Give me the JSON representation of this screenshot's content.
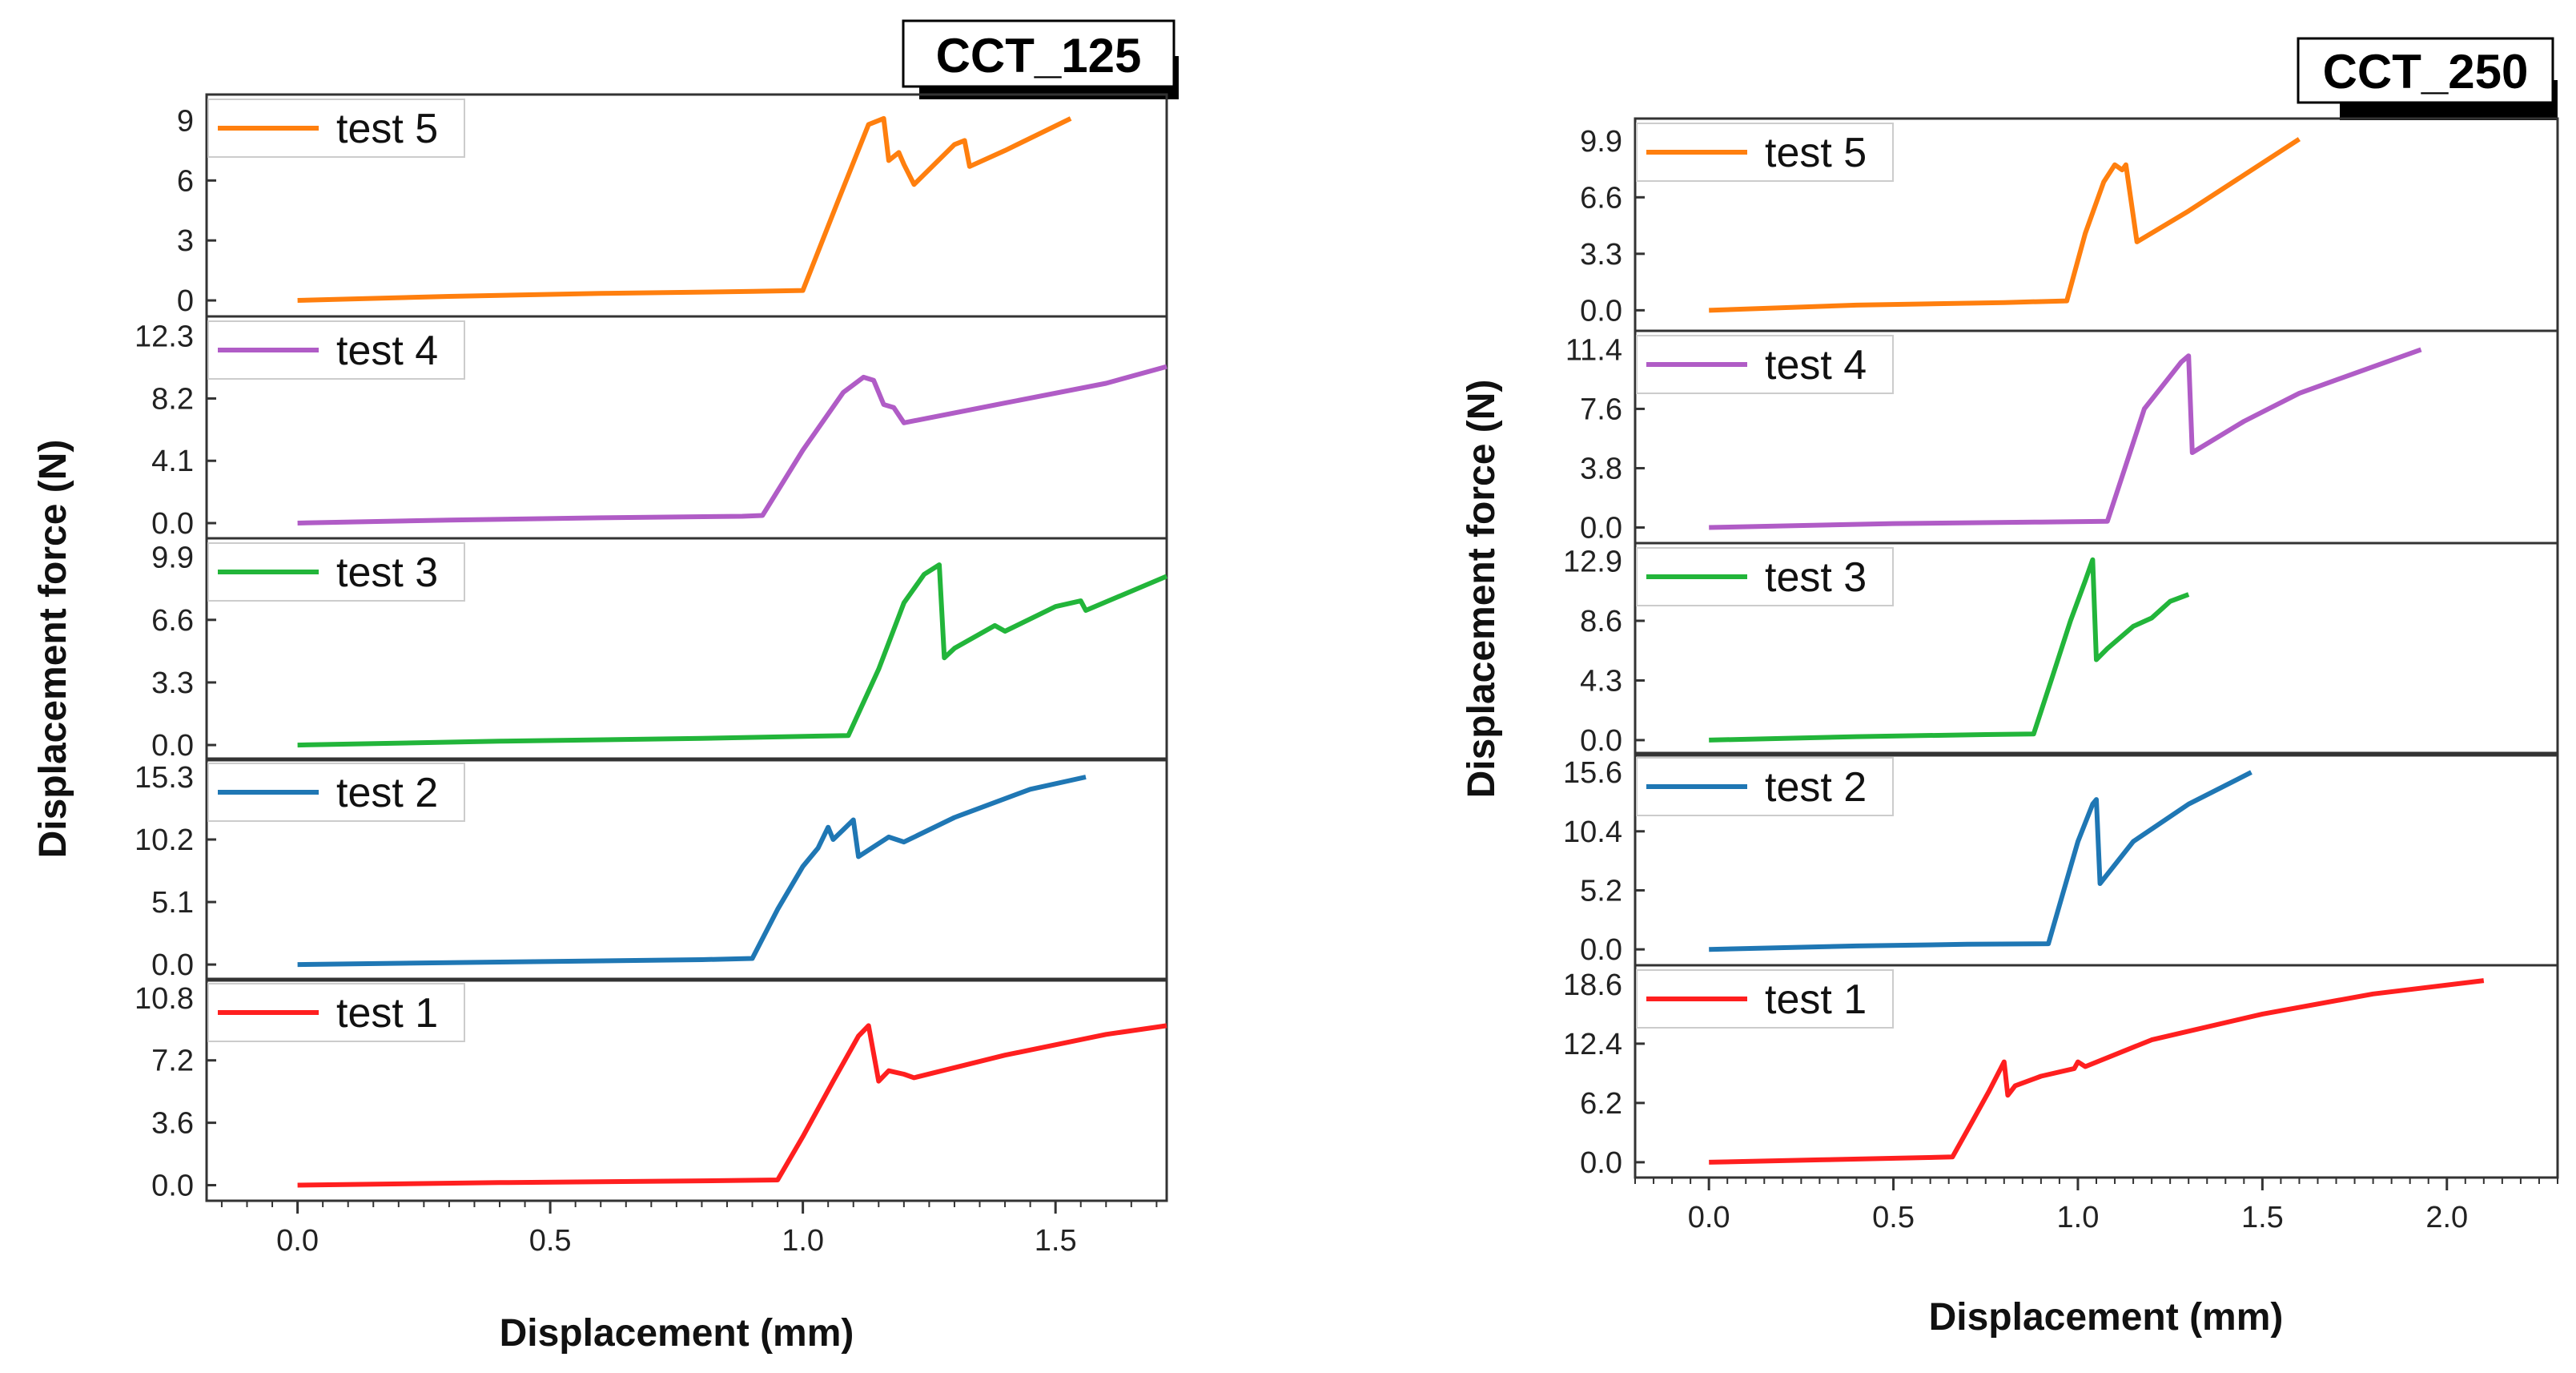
{
  "chart_data": [
    {
      "type": "line",
      "title": "CCT_125",
      "xlabel": "Displacement (mm)",
      "ylabel": "Displacement force (N)",
      "xlim": [
        -0.18,
        1.72
      ],
      "xticks": [
        0.0,
        0.5,
        1.0,
        1.5
      ],
      "xtick_labels": [
        "0.0",
        "0.5",
        "1.0",
        "1.5"
      ],
      "panels": [
        {
          "name": "test 5",
          "color": "#FF7F0E",
          "ylim": [
            -0.8,
            10.3
          ],
          "yticks": [
            0,
            3,
            6,
            9
          ],
          "ytick_labels": [
            "0",
            "3",
            "6",
            "9"
          ],
          "x": [
            0.0,
            0.3,
            0.6,
            0.9,
            1.0,
            1.07,
            1.13,
            1.16,
            1.17,
            1.19,
            1.2,
            1.22,
            1.3,
            1.32,
            1.33,
            1.4,
            1.53
          ],
          "y": [
            0.0,
            0.2,
            0.35,
            0.45,
            0.5,
            5.0,
            8.8,
            9.1,
            7.0,
            7.4,
            6.8,
            5.8,
            7.8,
            8.0,
            6.7,
            7.5,
            9.1
          ]
        },
        {
          "name": "test 4",
          "color": "#B05CC6",
          "ylim": [
            -1.0,
            13.6
          ],
          "yticks": [
            0.0,
            4.1,
            8.2,
            12.3
          ],
          "ytick_labels": [
            "0.0",
            "4.1",
            "8.2",
            "12.3"
          ],
          "x": [
            0.0,
            0.3,
            0.6,
            0.88,
            0.92,
            1.0,
            1.08,
            1.12,
            1.14,
            1.16,
            1.18,
            1.2,
            1.4,
            1.6,
            1.72
          ],
          "y": [
            0.0,
            0.2,
            0.35,
            0.45,
            0.5,
            4.8,
            8.6,
            9.6,
            9.4,
            7.8,
            7.6,
            6.6,
            7.9,
            9.2,
            10.3
          ]
        },
        {
          "name": "test 3",
          "color": "#22B53A",
          "ylim": [
            -0.8,
            10.9
          ],
          "yticks": [
            0.0,
            3.3,
            6.6,
            9.9
          ],
          "ytick_labels": [
            "0.0",
            "3.3",
            "6.6",
            "9.9"
          ],
          "x": [
            0.0,
            0.4,
            0.8,
            1.09,
            1.15,
            1.2,
            1.24,
            1.27,
            1.28,
            1.3,
            1.38,
            1.4,
            1.5,
            1.55,
            1.56,
            1.72
          ],
          "y": [
            0.0,
            0.2,
            0.35,
            0.5,
            4.0,
            7.5,
            9.0,
            9.5,
            4.6,
            5.1,
            6.3,
            6.0,
            7.3,
            7.6,
            7.1,
            8.9
          ]
        },
        {
          "name": "test 2",
          "color": "#1F77B4",
          "ylim": [
            -1.3,
            16.8
          ],
          "yticks": [
            0.0,
            5.1,
            10.2,
            15.3
          ],
          "ytick_labels": [
            "0.0",
            "5.1",
            "10.2",
            "15.3"
          ],
          "x": [
            0.0,
            0.4,
            0.8,
            0.9,
            0.95,
            1.0,
            1.03,
            1.05,
            1.06,
            1.08,
            1.1,
            1.11,
            1.17,
            1.2,
            1.3,
            1.45,
            1.56
          ],
          "y": [
            0.0,
            0.2,
            0.4,
            0.5,
            4.5,
            8.0,
            9.5,
            11.2,
            10.2,
            11.0,
            11.8,
            8.8,
            10.4,
            10.0,
            12.0,
            14.3,
            15.3
          ]
        },
        {
          "name": "test 1",
          "color": "#FF1F1F",
          "ylim": [
            -0.9,
            11.9
          ],
          "yticks": [
            0.0,
            3.6,
            7.2,
            10.8
          ],
          "ytick_labels": [
            "0.0",
            "3.6",
            "7.2",
            "10.8"
          ],
          "x": [
            0.0,
            0.4,
            0.8,
            0.95,
            1.0,
            1.06,
            1.11,
            1.13,
            1.15,
            1.17,
            1.2,
            1.22,
            1.4,
            1.6,
            1.72
          ],
          "y": [
            0.0,
            0.15,
            0.25,
            0.3,
            2.8,
            6.0,
            8.6,
            9.2,
            6.0,
            6.6,
            6.4,
            6.2,
            7.5,
            8.7,
            9.2
          ]
        }
      ]
    },
    {
      "type": "line",
      "title": "CCT_250",
      "xlabel": "Displacement (mm)",
      "ylabel": "Displacement force (N)",
      "xlim": [
        -0.2,
        2.3
      ],
      "xticks": [
        0.0,
        0.5,
        1.0,
        1.5,
        2.0
      ],
      "xtick_labels": [
        "0.0",
        "0.5",
        "1.0",
        "1.5",
        "2.0"
      ],
      "panels": [
        {
          "name": "test 5",
          "color": "#FF7F0E",
          "ylim": [
            -1.2,
            11.2
          ],
          "yticks": [
            0.0,
            3.3,
            6.6,
            9.9
          ],
          "ytick_labels": [
            "0.0",
            "3.3",
            "6.6",
            "9.9"
          ],
          "x": [
            0.0,
            0.4,
            0.8,
            0.97,
            1.02,
            1.07,
            1.1,
            1.12,
            1.13,
            1.15,
            1.16,
            1.3,
            1.45,
            1.6
          ],
          "y": [
            0.0,
            0.3,
            0.45,
            0.55,
            4.5,
            7.5,
            8.5,
            8.2,
            8.5,
            5.5,
            4.0,
            5.8,
            7.9,
            10.0
          ]
        },
        {
          "name": "test 4",
          "color": "#B05CC6",
          "ylim": [
            -1.0,
            12.6
          ],
          "yticks": [
            0.0,
            3.8,
            7.6,
            11.4
          ],
          "ytick_labels": [
            "0.0",
            "3.8",
            "7.6",
            "11.4"
          ],
          "x": [
            0.0,
            0.5,
            0.9,
            1.08,
            1.13,
            1.18,
            1.24,
            1.28,
            1.3,
            1.31,
            1.45,
            1.6,
            1.8,
            1.93
          ],
          "y": [
            0.0,
            0.25,
            0.35,
            0.4,
            4.0,
            7.6,
            9.4,
            10.6,
            11.0,
            4.8,
            6.8,
            8.6,
            10.3,
            11.4
          ]
        },
        {
          "name": "test 3",
          "color": "#22B53A",
          "ylim": [
            -1.1,
            14.2
          ],
          "yticks": [
            0.0,
            4.3,
            8.6,
            12.9
          ],
          "ytick_labels": [
            "0.0",
            "4.3",
            "8.6",
            "12.9"
          ],
          "x": [
            0.0,
            0.4,
            0.75,
            0.88,
            0.93,
            0.98,
            1.02,
            1.04,
            1.05,
            1.08,
            1.15,
            1.2,
            1.25,
            1.3
          ],
          "y": [
            0.0,
            0.25,
            0.4,
            0.45,
            4.5,
            8.6,
            11.5,
            13.0,
            5.8,
            6.6,
            8.2,
            8.8,
            10.0,
            10.5
          ]
        },
        {
          "name": "test 2",
          "color": "#1F77B4",
          "ylim": [
            -1.4,
            17.3
          ],
          "yticks": [
            0.0,
            5.2,
            10.4,
            15.6
          ],
          "ytick_labels": [
            "0.0",
            "5.2",
            "10.4",
            "15.6"
          ],
          "x": [
            0.0,
            0.4,
            0.7,
            0.92,
            0.96,
            1.0,
            1.04,
            1.05,
            1.06,
            1.15,
            1.3,
            1.47
          ],
          "y": [
            0.0,
            0.3,
            0.45,
            0.5,
            5.0,
            9.5,
            12.8,
            13.2,
            5.8,
            9.5,
            12.8,
            15.6
          ]
        },
        {
          "name": "test 1",
          "color": "#FF1F1F",
          "ylim": [
            -1.6,
            20.6
          ],
          "yticks": [
            0.0,
            6.2,
            12.4,
            18.6
          ],
          "ytick_labels": [
            "0.0",
            "6.2",
            "12.4",
            "18.6"
          ],
          "x": [
            0.0,
            0.3,
            0.66,
            0.71,
            0.76,
            0.8,
            0.81,
            0.83,
            0.9,
            0.99,
            1.0,
            1.02,
            1.2,
            1.5,
            1.8,
            2.1
          ],
          "y": [
            0.0,
            0.25,
            0.55,
            4.0,
            7.5,
            10.5,
            7.0,
            8.0,
            9.0,
            9.8,
            10.5,
            10.0,
            12.8,
            15.5,
            17.6,
            19.0
          ]
        }
      ]
    }
  ]
}
